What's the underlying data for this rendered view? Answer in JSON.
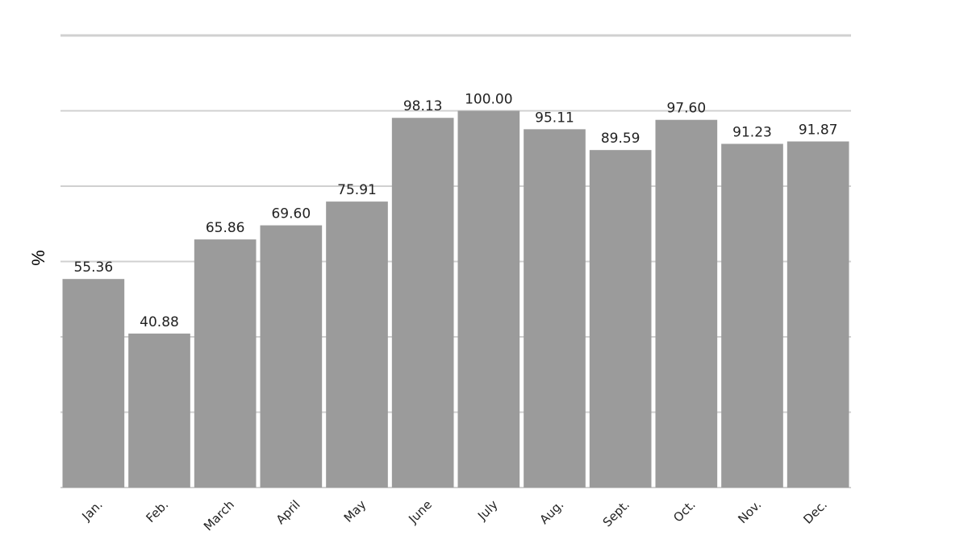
{
  "chart_data": {
    "type": "bar",
    "categories": [
      "Jan.",
      "Feb.",
      "March",
      "April",
      "May",
      "June",
      "July",
      "Aug.",
      "Sept.",
      "Oct.",
      "Nov.",
      "Dec."
    ],
    "values": [
      55.36,
      40.88,
      65.86,
      69.6,
      75.91,
      98.13,
      100.0,
      95.11,
      89.59,
      97.6,
      91.23,
      91.87
    ],
    "value_labels": [
      "55.36",
      "40.88",
      "65.86",
      "69.60",
      "75.91",
      "98.13",
      "100.00",
      "95.11",
      "89.59",
      "97.60",
      "91.23",
      "91.87"
    ],
    "title": "",
    "xlabel": "",
    "ylabel": "%",
    "ylim": [
      0,
      120
    ],
    "grid": true,
    "bar_color": "#9b9b9b",
    "grid_color": "#d0d0d0"
  }
}
